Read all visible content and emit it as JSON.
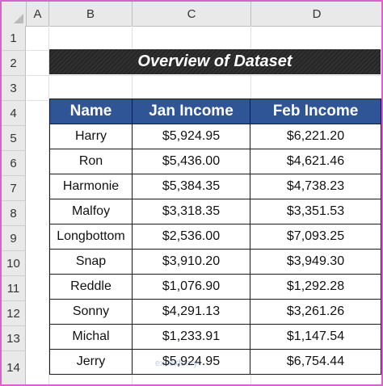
{
  "columns": [
    "A",
    "B",
    "C",
    "D"
  ],
  "rows": [
    "1",
    "2",
    "3",
    "4",
    "5",
    "6",
    "7",
    "8",
    "9",
    "10",
    "11",
    "12",
    "13",
    "14"
  ],
  "title": "Overview of Dataset",
  "table": {
    "headers": [
      "Name",
      "Jan Income",
      "Feb Income"
    ],
    "rows": [
      [
        "Harry",
        "$5,924.95",
        "$6,221.20"
      ],
      [
        "Ron",
        "$5,436.00",
        "$4,621.46"
      ],
      [
        "Harmonie",
        "$5,384.35",
        "$4,738.23"
      ],
      [
        "Malfoy",
        "$3,318.35",
        "$3,351.53"
      ],
      [
        "Longbottom",
        "$2,536.00",
        "$7,093.25"
      ],
      [
        "Snap",
        "$3,910.20",
        "$3,949.30"
      ],
      [
        "Reddle",
        "$1,076.90",
        "$1,292.28"
      ],
      [
        "Sonny",
        "$4,291.13",
        "$3,261.26"
      ],
      [
        "Michal",
        "$1,233.91",
        "$1,147.54"
      ],
      [
        "Jerry",
        "$5,924.95",
        "$6,754.44"
      ]
    ]
  },
  "watermark": "exceldemy",
  "colors": {
    "header_fill": "#2f5597",
    "title_fill": "#262626",
    "frame": "#d764c9"
  }
}
